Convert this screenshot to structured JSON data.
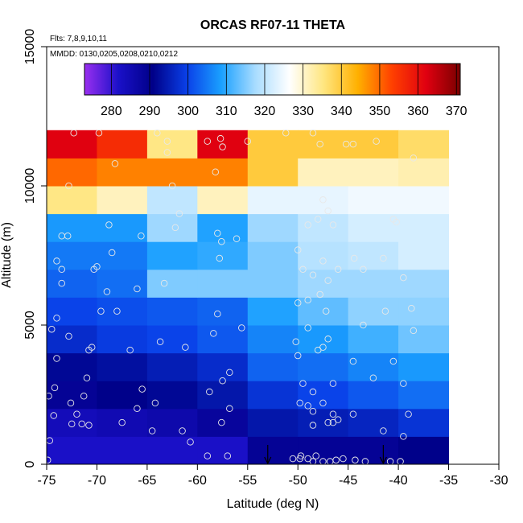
{
  "chart_data": {
    "type": "heatmap",
    "title": "ORCAS RF07-11 THETA",
    "flights_note": "Flts: 7,8,9,10,11",
    "dates_note": "MMDD: 0130,0205,0208,0210,0212",
    "xlabel": "Latitude (deg N)",
    "ylabel": "Altitude (m)",
    "xlim": [
      -75,
      -30
    ],
    "ylim": [
      0,
      15000
    ],
    "x_ticks": [
      -75,
      -70,
      -65,
      -60,
      -55,
      -50,
      -45,
      -40,
      -35,
      -30
    ],
    "y_ticks": [
      0,
      5000,
      10000,
      15000
    ],
    "colorbar": {
      "range": [
        273,
        371
      ],
      "ticks": [
        280,
        290,
        300,
        310,
        320,
        330,
        340,
        350,
        360,
        370
      ],
      "gradient_colors": [
        "#9a2ff0",
        "#1a10c8",
        "#000088",
        "#0a40e8",
        "#1aa0ff",
        "#a8dcff",
        "#ffffff",
        "#ffe680",
        "#ffb000",
        "#ff4000",
        "#e00010",
        "#7a0000"
      ]
    },
    "x_bins": [
      -75,
      -70,
      -65,
      -60,
      -55,
      -50,
      -45,
      -40,
      -35
    ],
    "altitude_bins": [
      0,
      1000,
      2000,
      3000,
      4000,
      5000,
      6000,
      7000,
      8000,
      9000,
      10000,
      11000,
      12000
    ],
    "values": [
      [
        282,
        282,
        282,
        282,
        289,
        289,
        289,
        291
      ],
      [
        284,
        285,
        286,
        288,
        294,
        295,
        296,
        298
      ],
      [
        289,
        291,
        292,
        294,
        298,
        300,
        302,
        304
      ],
      [
        292,
        293,
        295,
        297,
        303,
        304,
        306,
        308
      ],
      [
        297,
        299,
        300,
        302,
        306,
        308,
        311,
        314
      ],
      [
        300,
        301,
        302,
        303,
        309,
        313,
        316,
        316
      ],
      [
        303,
        304,
        315,
        315,
        315,
        317,
        317,
        317
      ],
      [
        305,
        305,
        309,
        310,
        315,
        319,
        320,
        322
      ],
      [
        308,
        308,
        317,
        309,
        317,
        320,
        322,
        322
      ],
      [
        335,
        331,
        320,
        331,
        324,
        324,
        325,
        325
      ],
      [
        350,
        348,
        348,
        348,
        340,
        331,
        331,
        332
      ],
      [
        362,
        356,
        335,
        362,
        340,
        340,
        340,
        337
      ]
    ],
    "observations": [
      [
        -74.9,
        150
      ],
      [
        -74.7,
        850
      ],
      [
        -74.8,
        2450
      ],
      [
        -74.3,
        1750
      ],
      [
        -74.2,
        2750
      ],
      [
        -74.5,
        4850
      ],
      [
        -74.0,
        5250
      ],
      [
        -74.0,
        7300
      ],
      [
        -73.5,
        7000
      ],
      [
        -73.5,
        6500
      ],
      [
        -73.5,
        8200
      ],
      [
        -72.9,
        8200
      ],
      [
        -74.0,
        3800
      ],
      [
        -72.8,
        4600
      ],
      [
        -72.6,
        2200
      ],
      [
        -72.5,
        1450
      ],
      [
        -72.0,
        1800
      ],
      [
        -71.5,
        1450
      ],
      [
        -70.8,
        1400
      ],
      [
        -71.3,
        2450
      ],
      [
        -71.0,
        3100
      ],
      [
        -70.5,
        4200
      ],
      [
        -70.8,
        4100
      ],
      [
        -70.3,
        7000
      ],
      [
        -70.0,
        7100
      ],
      [
        -68.5,
        7600
      ],
      [
        -68.8,
        8600
      ],
      [
        -69.0,
        6200
      ],
      [
        -69.6,
        5500
      ],
      [
        -68.0,
        5500
      ],
      [
        -66.7,
        4100
      ],
      [
        -66.0,
        6300
      ],
      [
        -65.6,
        8200
      ],
      [
        -67.5,
        1500
      ],
      [
        -66.0,
        2000
      ],
      [
        -65.5,
        2700
      ],
      [
        -68.2,
        10800
      ],
      [
        -69.8,
        11900
      ],
      [
        -72.3,
        11900
      ],
      [
        -72.8,
        10000
      ],
      [
        -64.5,
        1200
      ],
      [
        -64.2,
        2200
      ],
      [
        -63.7,
        4400
      ],
      [
        -63.3,
        6500
      ],
      [
        -62.2,
        8500
      ],
      [
        -61.8,
        9000
      ],
      [
        -63.0,
        11600
      ],
      [
        -63.0,
        11200
      ],
      [
        -62.5,
        10000
      ],
      [
        -61.2,
        4200
      ],
      [
        -61.5,
        1200
      ],
      [
        -60.7,
        800
      ],
      [
        -64.0,
        11900
      ],
      [
        -59.0,
        11600
      ],
      [
        -57.7,
        11700
      ],
      [
        -57.5,
        11400
      ],
      [
        -58.2,
        10500
      ],
      [
        -58.0,
        8300
      ],
      [
        -57.6,
        8000
      ],
      [
        -57.8,
        7400
      ],
      [
        -56.1,
        8100
      ],
      [
        -58.0,
        5400
      ],
      [
        -58.4,
        4700
      ],
      [
        -56.8,
        3300
      ],
      [
        -57.5,
        3000
      ],
      [
        -58.8,
        2600
      ],
      [
        -57.6,
        1500
      ],
      [
        -56.8,
        2000
      ],
      [
        -55.6,
        4900
      ],
      [
        -59.0,
        300
      ],
      [
        -57.0,
        300
      ],
      [
        -55.0,
        11600
      ],
      [
        -51.2,
        11900
      ],
      [
        -48.5,
        11900
      ],
      [
        -47.8,
        11500
      ],
      [
        -45.2,
        11500
      ],
      [
        -44.5,
        11500
      ],
      [
        -42.2,
        11600
      ],
      [
        -38.5,
        11000
      ],
      [
        -47.5,
        9500
      ],
      [
        -47.0,
        9100
      ],
      [
        -46.5,
        8600
      ],
      [
        -48.0,
        8800
      ],
      [
        -49.0,
        8600
      ],
      [
        -50.0,
        7700
      ],
      [
        -49.5,
        7000
      ],
      [
        -48.5,
        6800
      ],
      [
        -47.5,
        7300
      ],
      [
        -46.0,
        7000
      ],
      [
        -44.4,
        7400
      ],
      [
        -43.5,
        7000
      ],
      [
        -41.5,
        7400
      ],
      [
        -40.2,
        8700
      ],
      [
        -40.5,
        8800
      ],
      [
        -39.5,
        6700
      ],
      [
        -38.7,
        5600
      ],
      [
        -38.5,
        4800
      ],
      [
        -50.0,
        5800
      ],
      [
        -49.0,
        5900
      ],
      [
        -47.8,
        6100
      ],
      [
        -47.2,
        5500
      ],
      [
        -47.0,
        6600
      ],
      [
        -43.5,
        5000
      ],
      [
        -41.3,
        5500
      ],
      [
        -49.0,
        4900
      ],
      [
        -50.2,
        4400
      ],
      [
        -48.0,
        4100
      ],
      [
        -47.5,
        4200
      ],
      [
        -47.0,
        4500
      ],
      [
        -50.0,
        3900
      ],
      [
        -49.5,
        2900
      ],
      [
        -48.5,
        2600
      ],
      [
        -46.5,
        2900
      ],
      [
        -44.5,
        3700
      ],
      [
        -42.5,
        3100
      ],
      [
        -40.5,
        3700
      ],
      [
        -39.5,
        2900
      ],
      [
        -49.8,
        2200
      ],
      [
        -49.0,
        2100
      ],
      [
        -48.5,
        1900
      ],
      [
        -47.5,
        2200
      ],
      [
        -46.5,
        1800
      ],
      [
        -46.0,
        1600
      ],
      [
        -44.5,
        1800
      ],
      [
        -41.5,
        1200
      ],
      [
        -39.5,
        1000
      ],
      [
        -39.0,
        1800
      ],
      [
        -48.5,
        1400
      ],
      [
        -47.0,
        1500
      ],
      [
        -46.5,
        1500
      ],
      [
        -50.5,
        200
      ],
      [
        -49.8,
        200
      ],
      [
        -49.0,
        200
      ],
      [
        -48.5,
        100
      ],
      [
        -47.5,
        100
      ],
      [
        -46.8,
        100
      ],
      [
        -46.2,
        150
      ],
      [
        -45.5,
        200
      ],
      [
        -44.3,
        150
      ],
      [
        -43.3,
        100
      ],
      [
        -40.8,
        100
      ],
      [
        -39.8,
        100
      ],
      [
        -49.7,
        300
      ],
      [
        -48.2,
        300
      ]
    ],
    "flight_markers_lat": [
      -53.0,
      -41.5
    ]
  }
}
